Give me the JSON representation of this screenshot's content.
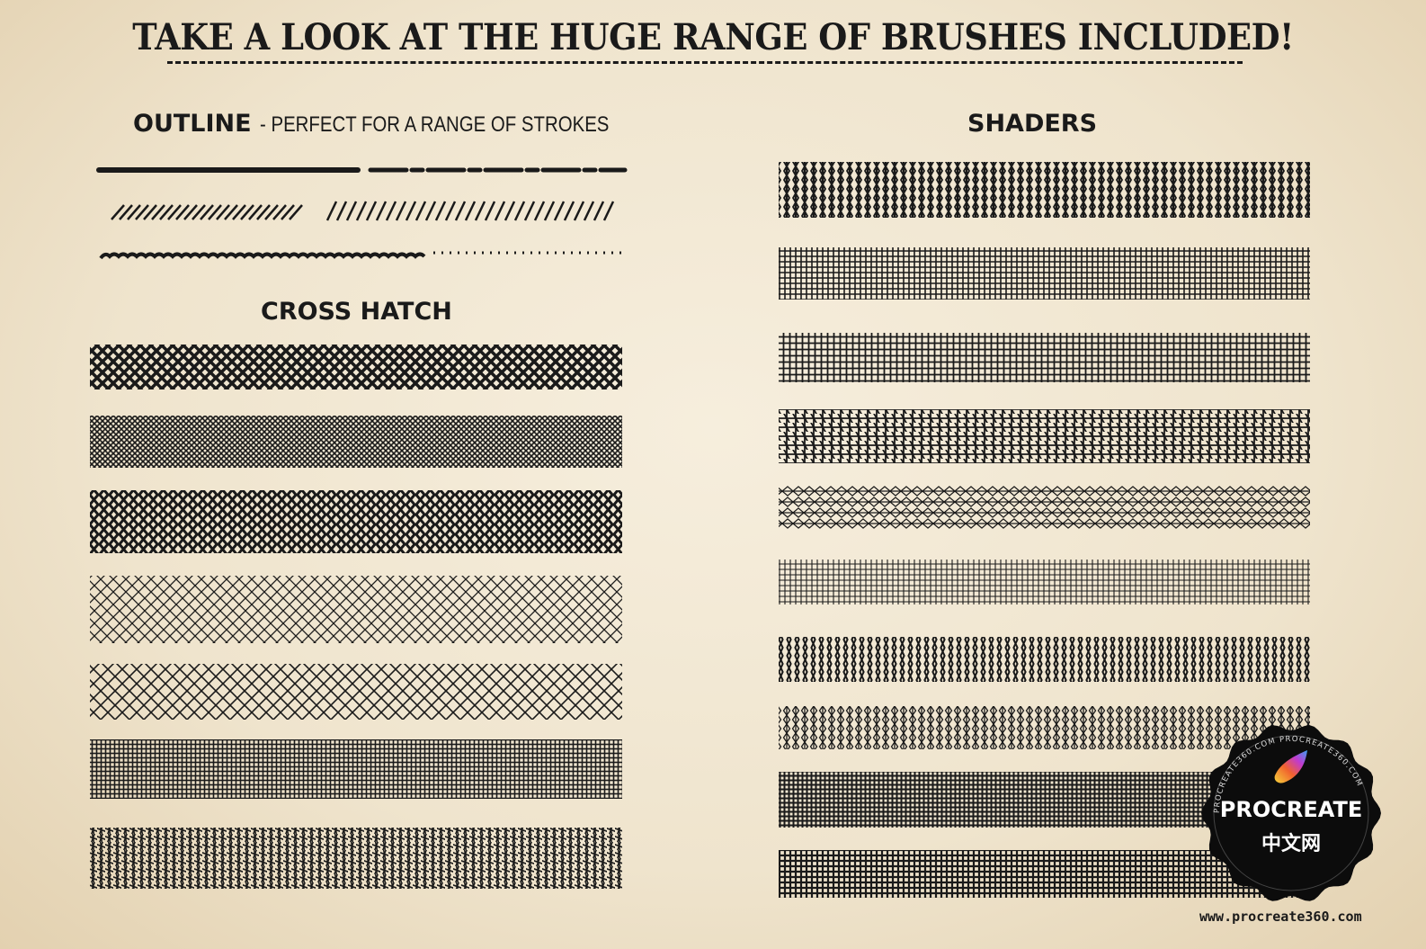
{
  "title": "TAKE A LOOK AT THE HUGE RANGE OF BRUSHES INCLUDED!",
  "sections": {
    "outline": {
      "heading": "OUTLINE",
      "subtitle": "- PERFECT FOR A RANGE OF STROKES"
    },
    "cross_hatch": {
      "heading": "CROSS HATCH"
    },
    "shaders": {
      "heading": "SHADERS"
    }
  },
  "watermark": {
    "brand": "PROCREATE",
    "brand_cn": "中文网",
    "ring_text": "PROCREATE360.COM PROCREATE360.COM",
    "url": "www.procreate360.com"
  },
  "colors": {
    "ink": "#1a1a1a",
    "paper": "#f2e8d4"
  }
}
